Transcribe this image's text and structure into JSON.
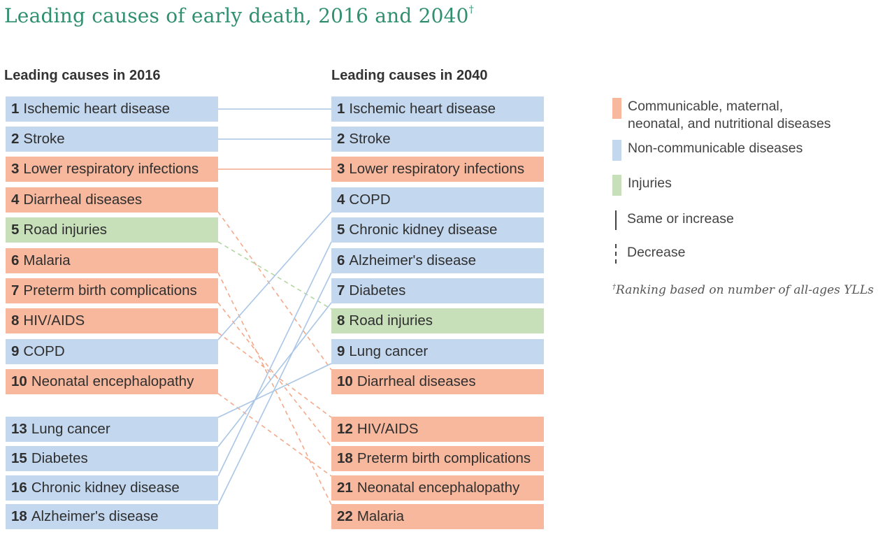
{
  "title": "Leading causes of early death, 2016 and 2040",
  "title_mark": "†",
  "left_heading": "Leading causes in 2016",
  "right_heading": "Leading causes in 2040",
  "colors": {
    "communicable": "#f7b89d",
    "non_communicable": "#c3d7ee",
    "injuries": "#c7e0b9",
    "title": "#2f8f6f"
  },
  "left_items": [
    {
      "rank": "1",
      "label": "Ischemic heart disease",
      "category": "non_communicable"
    },
    {
      "rank": "2",
      "label": "Stroke",
      "category": "non_communicable"
    },
    {
      "rank": "3",
      "label": "Lower respiratory infections",
      "category": "communicable"
    },
    {
      "rank": "4",
      "label": "Diarrheal diseases",
      "category": "communicable"
    },
    {
      "rank": "5",
      "label": "Road injuries",
      "category": "injuries"
    },
    {
      "rank": "6",
      "label": "Malaria",
      "category": "communicable"
    },
    {
      "rank": "7",
      "label": "Preterm birth complications",
      "category": "communicable"
    },
    {
      "rank": "8",
      "label": "HIV/AIDS",
      "category": "communicable"
    },
    {
      "rank": "9",
      "label": "COPD",
      "category": "non_communicable"
    },
    {
      "rank": "10",
      "label": "Neonatal encephalopathy",
      "category": "communicable"
    },
    {
      "rank": "13",
      "label": "Lung cancer",
      "category": "non_communicable"
    },
    {
      "rank": "15",
      "label": "Diabetes",
      "category": "non_communicable"
    },
    {
      "rank": "16",
      "label": "Chronic kidney disease",
      "category": "non_communicable"
    },
    {
      "rank": "18",
      "label": "Alzheimer's disease",
      "category": "non_communicable"
    }
  ],
  "right_items": [
    {
      "rank": "1",
      "label": "Ischemic heart disease",
      "category": "non_communicable"
    },
    {
      "rank": "2",
      "label": "Stroke",
      "category": "non_communicable"
    },
    {
      "rank": "3",
      "label": "Lower respiratory infections",
      "category": "communicable"
    },
    {
      "rank": "4",
      "label": "COPD",
      "category": "non_communicable"
    },
    {
      "rank": "5",
      "label": "Chronic kidney disease",
      "category": "non_communicable"
    },
    {
      "rank": "6",
      "label": "Alzheimer's disease",
      "category": "non_communicable"
    },
    {
      "rank": "7",
      "label": "Diabetes",
      "category": "non_communicable"
    },
    {
      "rank": "8",
      "label": "Road injuries",
      "category": "injuries"
    },
    {
      "rank": "9",
      "label": "Lung cancer",
      "category": "non_communicable"
    },
    {
      "rank": "10",
      "label": "Diarrheal diseases",
      "category": "communicable"
    },
    {
      "rank": "12",
      "label": "HIV/AIDS",
      "category": "communicable"
    },
    {
      "rank": "18",
      "label": "Preterm birth complications",
      "category": "communicable"
    },
    {
      "rank": "21",
      "label": "Neonatal encephalopathy",
      "category": "communicable"
    },
    {
      "rank": "22",
      "label": "Malaria",
      "category": "communicable"
    }
  ],
  "links": [
    {
      "from": "1",
      "to": "1",
      "style": "solid",
      "category": "non_communicable"
    },
    {
      "from": "2",
      "to": "2",
      "style": "solid",
      "category": "non_communicable"
    },
    {
      "from": "3",
      "to": "3",
      "style": "solid",
      "category": "communicable"
    },
    {
      "from": "4",
      "to": "10",
      "style": "dashed",
      "category": "communicable"
    },
    {
      "from": "5",
      "to": "8",
      "style": "dashed",
      "category": "injuries"
    },
    {
      "from": "6",
      "to": "22",
      "style": "dashed",
      "category": "communicable"
    },
    {
      "from": "7",
      "to": "18",
      "style": "dashed",
      "category": "communicable"
    },
    {
      "from": "8",
      "to": "12",
      "style": "dashed",
      "category": "communicable"
    },
    {
      "from": "9",
      "to": "4",
      "style": "solid",
      "category": "non_communicable"
    },
    {
      "from": "10",
      "to": "21",
      "style": "dashed",
      "category": "communicable"
    },
    {
      "from": "13",
      "to": "9",
      "style": "solid",
      "category": "non_communicable"
    },
    {
      "from": "15",
      "to": "7",
      "style": "solid",
      "category": "non_communicable"
    },
    {
      "from": "16",
      "to": "5",
      "style": "solid",
      "category": "non_communicable"
    },
    {
      "from": "18",
      "to": "6",
      "style": "solid",
      "category": "non_communicable"
    }
  ],
  "legend": {
    "communicable": "Communicable, maternal, neonatal, and nutritional diseases",
    "non_communicable": "Non-communicable diseases",
    "injuries": "Injuries",
    "same_or_increase": "Same or increase",
    "decrease": "Decrease"
  },
  "footnote_mark": "†",
  "footnote": "Ranking based on number of all-ages YLLs"
}
